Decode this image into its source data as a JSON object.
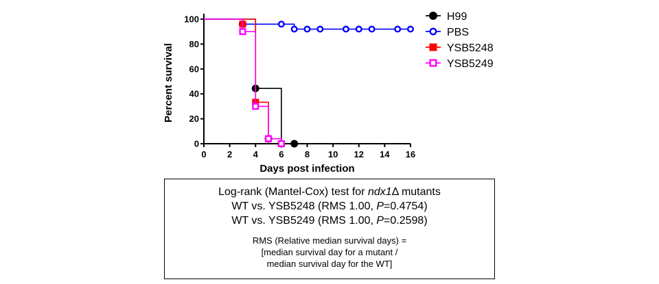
{
  "chart_data": {
    "type": "survival-step",
    "xlabel": "Days post infection",
    "ylabel": "Percent survival",
    "xlim": [
      0,
      16
    ],
    "ylim": [
      0,
      100
    ],
    "xticks": [
      0,
      2,
      4,
      6,
      8,
      10,
      12,
      14,
      16
    ],
    "yticks": [
      0,
      20,
      40,
      60,
      80,
      100
    ],
    "grid": false,
    "legend_position": "right",
    "series": [
      {
        "name": "H99",
        "color": "#000000",
        "marker": "circle-filled",
        "steps": [
          [
            0,
            100
          ],
          [
            4,
            44.4
          ],
          [
            6,
            0
          ],
          [
            7,
            0
          ]
        ],
        "markers": [
          [
            3,
            96
          ],
          [
            4,
            44.4
          ],
          [
            5,
            4
          ],
          [
            6,
            0
          ],
          [
            7,
            0
          ]
        ]
      },
      {
        "name": "PBS",
        "color": "#0000ff",
        "marker": "circle-open",
        "steps": [
          [
            0,
            100
          ],
          [
            3,
            96
          ],
          [
            7,
            92
          ],
          [
            16,
            92
          ]
        ],
        "markers": [
          [
            3,
            96
          ],
          [
            6,
            96
          ],
          [
            7,
            92
          ],
          [
            8,
            92
          ],
          [
            9,
            92
          ],
          [
            11,
            92
          ],
          [
            12,
            92
          ],
          [
            13,
            92
          ],
          [
            15,
            92
          ],
          [
            16,
            92
          ]
        ]
      },
      {
        "name": "YSB5248",
        "color": "#ff0000",
        "marker": "square-filled",
        "steps": [
          [
            0,
            100
          ],
          [
            4,
            33.3
          ],
          [
            5,
            4
          ],
          [
            6,
            0
          ]
        ],
        "markers": [
          [
            3,
            96
          ],
          [
            4,
            33.3
          ],
          [
            5,
            4
          ],
          [
            6,
            0
          ]
        ]
      },
      {
        "name": "YSB5249",
        "color": "#ff00ff",
        "marker": "square-open",
        "steps": [
          [
            0,
            100
          ],
          [
            3,
            90
          ],
          [
            4,
            30
          ],
          [
            5,
            4
          ],
          [
            6,
            0
          ]
        ],
        "markers": [
          [
            3,
            90
          ],
          [
            4,
            30
          ],
          [
            5,
            4
          ],
          [
            6,
            0
          ]
        ]
      }
    ]
  },
  "stats": {
    "title_prefix": "Log-rank (Mantel-Cox) test for ",
    "title_gene": "ndx1",
    "title_delta": "Δ",
    "title_suffix": " mutants",
    "lines": [
      {
        "prefix": "WT vs. YSB5248 (RMS 1.00, ",
        "p_label": "P",
        "p_value": "=0.4754)"
      },
      {
        "prefix": "WT vs. YSB5249 (RMS 1.00, ",
        "p_label": "P",
        "p_value": "=0.2598)"
      }
    ],
    "note_line1": "RMS (Relative median survival days) =",
    "note_line2": "[median survival day for a mutant  /",
    "note_line3": "median survival day for the WT]"
  }
}
